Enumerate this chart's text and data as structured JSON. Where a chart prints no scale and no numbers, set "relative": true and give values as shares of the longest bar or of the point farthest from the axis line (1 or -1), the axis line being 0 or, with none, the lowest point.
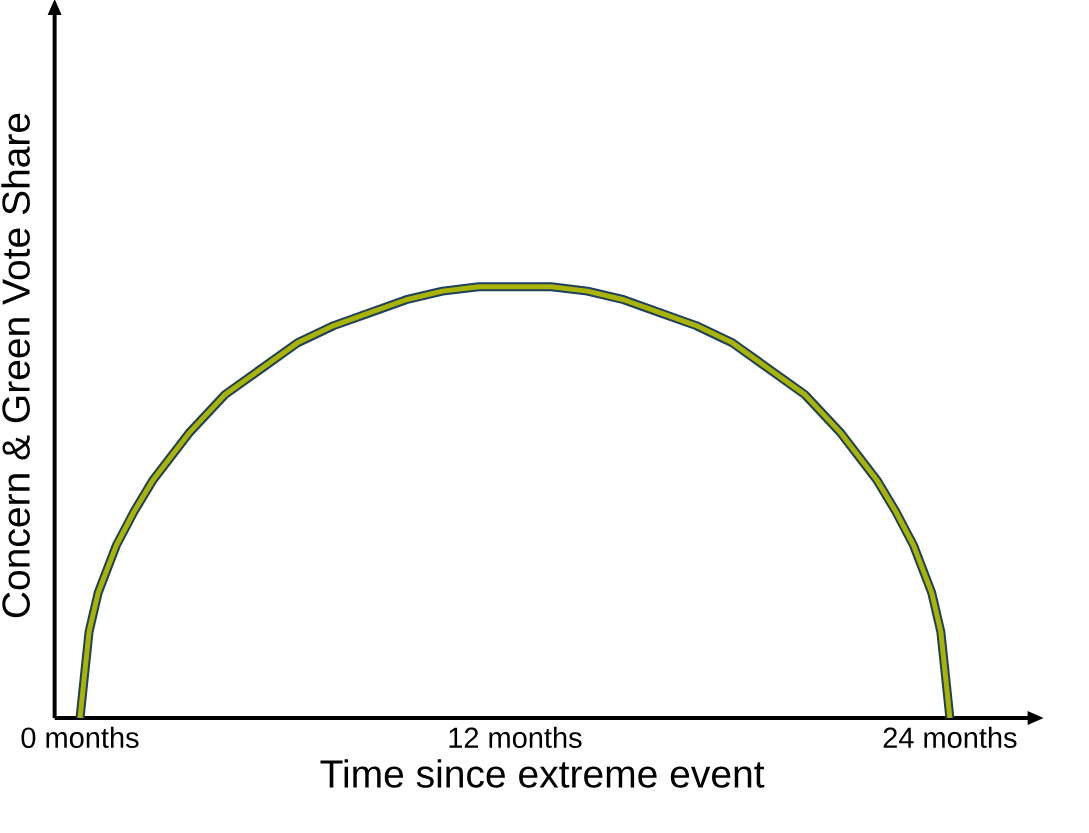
{
  "chart_data": {
    "type": "line",
    "relative": true,
    "xlabel": "Time since extreme event",
    "ylabel": "Concern & Green Vote Share",
    "x": [
      0,
      0.25,
      0.5,
      1,
      1.5,
      2,
      3,
      4,
      5,
      6,
      7,
      8,
      9,
      10,
      11,
      12,
      13,
      14,
      15,
      16,
      17,
      18,
      19,
      20,
      21,
      22,
      22.5,
      23,
      23.5,
      23.75,
      24
    ],
    "series": [
      {
        "color": "#a8b400",
        "values": [
          0,
          0.2,
          0.29,
          0.4,
          0.48,
          0.55,
          0.66,
          0.75,
          0.81,
          0.87,
          0.91,
          0.94,
          0.97,
          0.99,
          1.0,
          1.0,
          1.0,
          0.99,
          0.97,
          0.94,
          0.91,
          0.87,
          0.81,
          0.75,
          0.66,
          0.55,
          0.48,
          0.4,
          0.29,
          0.2,
          0
        ]
      }
    ],
    "xlim": [
      -0.7,
      26.2
    ],
    "xticks": [
      {
        "value": 0,
        "label": "0 months"
      },
      {
        "value": 12,
        "label": "12 months"
      },
      {
        "value": 24,
        "label": "24 months"
      }
    ],
    "marker": "none",
    "line_style": "solid",
    "grid": false
  }
}
